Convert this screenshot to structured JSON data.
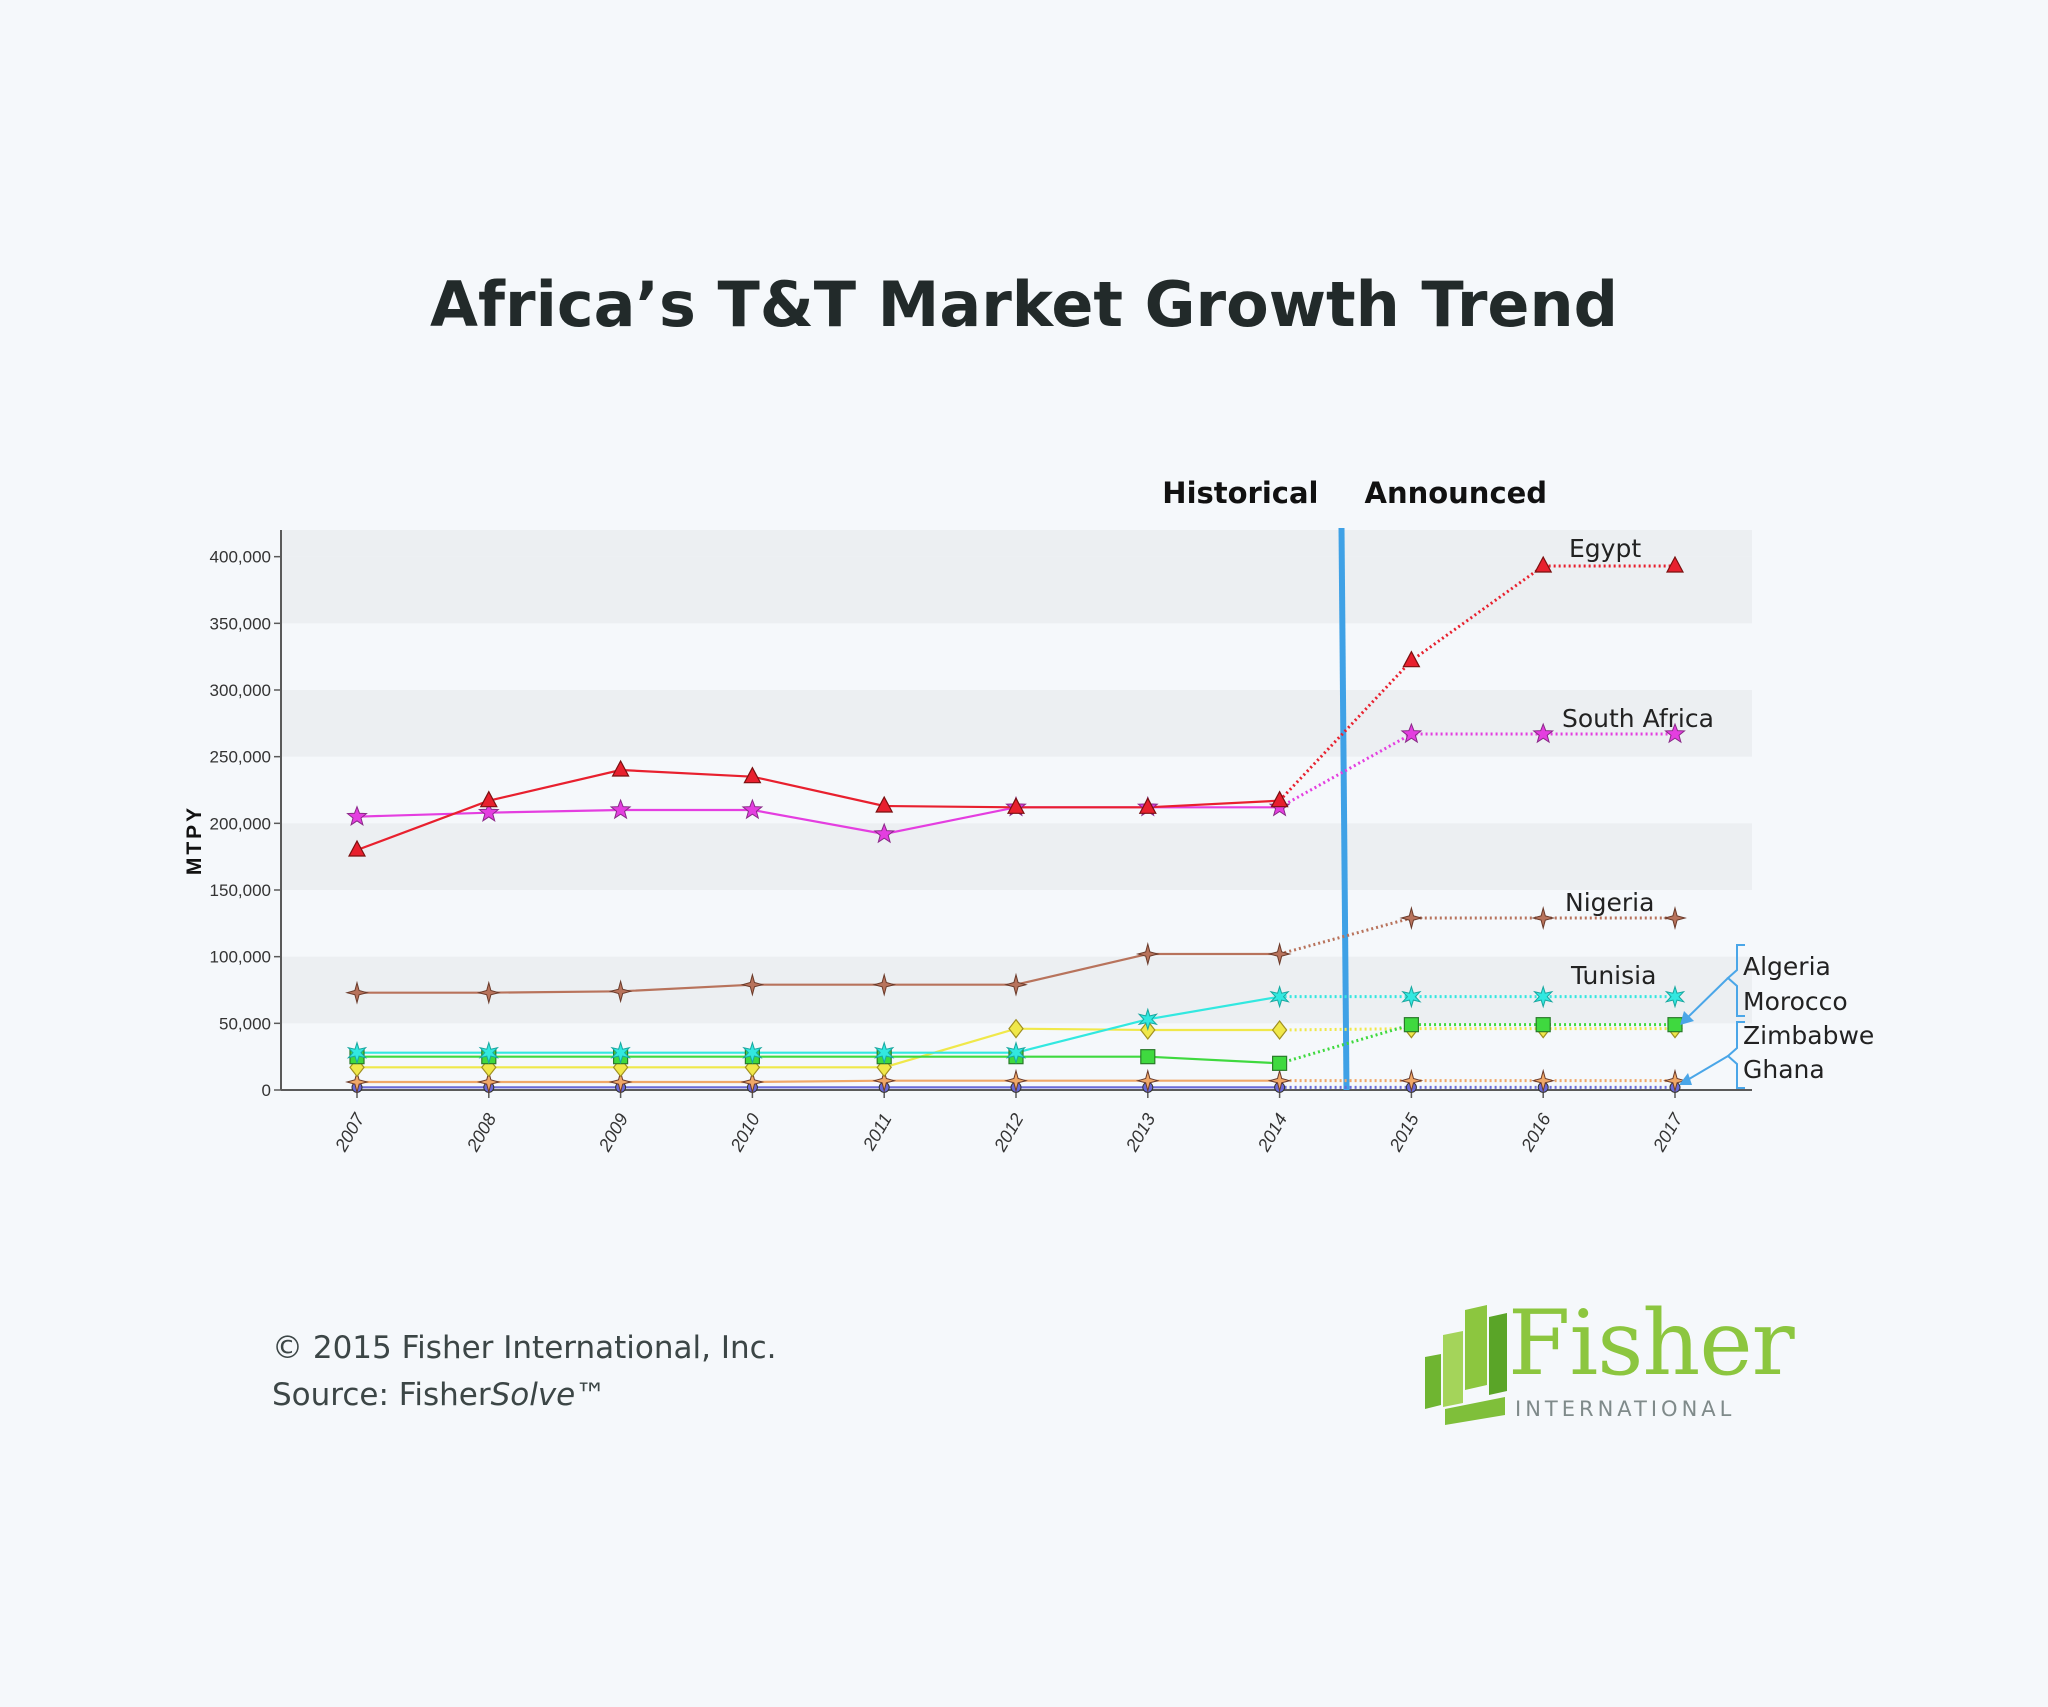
{
  "header": {
    "title": "Africa’s T&T Market Growth Trend"
  },
  "chart_data": {
    "type": "line",
    "title": "Africa’s T&T Market Growth Trend",
    "ylabel": "MTPY",
    "xlabel": "",
    "x": [
      "2007",
      "2008",
      "2009",
      "2010",
      "2011",
      "2012",
      "2013",
      "2014",
      "2015",
      "2016",
      "2017"
    ],
    "ylim": [
      0,
      420000
    ],
    "yticks": [
      0,
      50000,
      100000,
      150000,
      200000,
      250000,
      300000,
      350000,
      400000
    ],
    "ytick_labels": [
      "0",
      "50,000",
      "100,000",
      "150,000",
      "200,000",
      "250,000",
      "300,000",
      "350,000",
      "400,000"
    ],
    "grid": "alternating horizontal bands",
    "sections": {
      "left": "Historical",
      "right": "Announced"
    },
    "divider_color": "#3fa1e6",
    "series": [
      {
        "name": "Egypt",
        "color": "#e8202e",
        "marker": "triangle",
        "values": [
          180000,
          217000,
          240000,
          235000,
          213000,
          212000,
          212000,
          217000,
          322000,
          393000,
          393000
        ]
      },
      {
        "name": "South Africa",
        "color": "#e43ee0",
        "marker": "star",
        "values": [
          205000,
          208000,
          210000,
          210000,
          192000,
          212000,
          212000,
          212000,
          267000,
          267000,
          267000
        ]
      },
      {
        "name": "Nigeria",
        "color": "#b8735c",
        "marker": "star4",
        "values": [
          73000,
          73000,
          74000,
          79000,
          79000,
          79000,
          102000,
          102000,
          129000,
          129000,
          129000
        ]
      },
      {
        "name": "Tunisia",
        "color": "#32e8e0",
        "marker": "asterisk",
        "values": [
          28000,
          28000,
          28000,
          28000,
          28000,
          28000,
          53000,
          70000,
          70000,
          70000,
          70000
        ]
      },
      {
        "name": "Algeria",
        "color": "#3fd93f",
        "marker": "square",
        "values": [
          25000,
          25000,
          25000,
          25000,
          25000,
          25000,
          25000,
          20000,
          49000,
          49000,
          49000
        ]
      },
      {
        "name": "Morocco",
        "color": "#f0e84a",
        "marker": "diamond",
        "values": [
          17000,
          17000,
          17000,
          17000,
          17000,
          46000,
          45000,
          45000,
          46000,
          46000,
          46000
        ]
      },
      {
        "name": "Zimbabwe",
        "color": "#f0a868",
        "marker": "star4",
        "values": [
          6000,
          6000,
          6000,
          6000,
          7000,
          7000,
          7000,
          7000,
          7000,
          7000,
          7000
        ]
      },
      {
        "name": "Ghana",
        "color": "#6a6ad8",
        "marker": "circle",
        "values": [
          2000,
          2000,
          2000,
          2000,
          2000,
          2000,
          2000,
          2000,
          2000,
          2000,
          2000
        ]
      }
    ],
    "labels": [
      "Egypt",
      "South Africa",
      "Nigeria",
      "Tunisia"
    ],
    "bracket_labels": [
      "Algeria",
      "Morocco",
      "Zimbabwe",
      "Ghana"
    ]
  },
  "footer": {
    "copyright": "© 2015 Fisher International, Inc.",
    "source_prefix": "Source: Fisher",
    "source_italic": "Solve",
    "source_suffix": "™"
  },
  "logo": {
    "word": "Fisher",
    "sub": "INTERNATIONAL",
    "color": "#8cc63f"
  }
}
